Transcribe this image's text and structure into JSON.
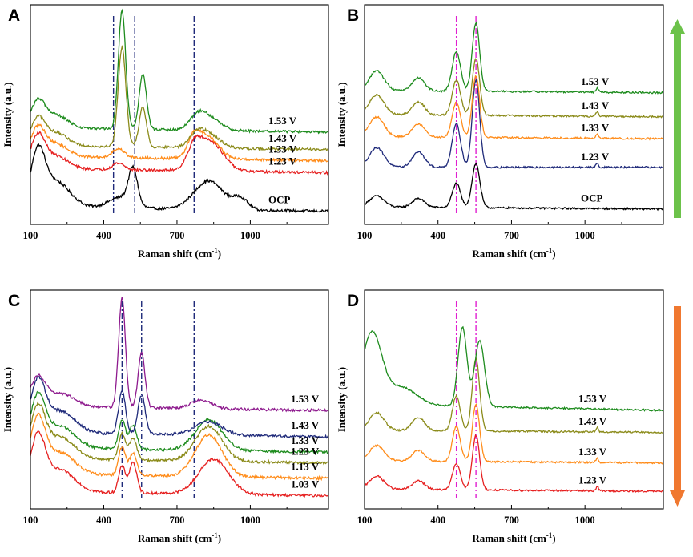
{
  "figure": {
    "arrows": {
      "up_color": "#6cc24a",
      "down_color": "#f07830"
    }
  },
  "chart_data": [
    {
      "panel": "A",
      "type": "line",
      "xlabel": "Raman shift (cm",
      "xlabel_sup": "-1",
      "xlabel_close": ")",
      "ylabel": "Intensity (a.u.)",
      "xlim": [
        100,
        1320
      ],
      "xticks": [
        100,
        400,
        700,
        1000
      ],
      "ref_lines": {
        "color": "#1f2a7a",
        "x": [
          440,
          527,
          770
        ]
      },
      "grid": false,
      "series": [
        {
          "name": "OCP",
          "label": "OCP",
          "color": "#000000",
          "offset": 0.08,
          "peaks": [
            [
              130,
              0.22,
              28
            ],
            [
              200,
              0.12,
              60
            ],
            [
              520,
              0.16,
              18
            ],
            [
              470,
              0.05,
              50
            ],
            [
              830,
              0.13,
              60
            ],
            [
              960,
              0.05,
              30
            ]
          ],
          "slope": -0.02,
          "noise": 0.006
        },
        {
          "name": "1.23 V",
          "label": "1.23 V",
          "color": "#e62020",
          "offset": 0.255,
          "peaks": [
            [
              130,
              0.14,
              28
            ],
            [
              200,
              0.06,
              50
            ],
            [
              460,
              0.03,
              25
            ],
            [
              770,
              0.07,
              25
            ],
            [
              830,
              0.14,
              55
            ]
          ],
          "slope": -0.02,
          "noise": 0.006
        },
        {
          "name": "1.33 V",
          "label": "1.33 V",
          "color": "#ff8c1a",
          "offset": 0.31,
          "peaks": [
            [
              130,
              0.12,
              28
            ],
            [
              200,
              0.06,
              50
            ],
            [
              460,
              0.04,
              25
            ],
            [
              770,
              0.08,
              25
            ],
            [
              825,
              0.1,
              45
            ]
          ],
          "slope": -0.02,
          "noise": 0.006
        },
        {
          "name": "1.43 V",
          "label": "1.43 V",
          "color": "#8b8b1a",
          "offset": 0.36,
          "peaks": [
            [
              130,
              0.11,
              28
            ],
            [
              200,
              0.06,
              50
            ],
            [
              475,
              0.45,
              16
            ],
            [
              560,
              0.18,
              15
            ],
            [
              780,
              0.05,
              30
            ],
            [
              830,
              0.06,
              45
            ]
          ],
          "slope": -0.02,
          "noise": 0.006
        },
        {
          "name": "1.53 V",
          "label": "1.53 V",
          "color": "#1e8c1e",
          "offset": 0.44,
          "peaks": [
            [
              130,
              0.11,
              28
            ],
            [
              200,
              0.06,
              50
            ],
            [
              475,
              0.54,
              15
            ],
            [
              560,
              0.25,
              15
            ],
            [
              780,
              0.05,
              30
            ],
            [
              830,
              0.06,
              45
            ]
          ],
          "slope": -0.02,
          "noise": 0.006
        }
      ]
    },
    {
      "panel": "B",
      "type": "line",
      "xlabel": "Raman shift (cm",
      "xlabel_sup": "-1",
      "xlabel_close": ")",
      "ylabel": "Intensity (a.u.)",
      "xlim": [
        100,
        1320
      ],
      "xticks": [
        100,
        400,
        700,
        1000
      ],
      "ref_lines": {
        "color": "#e020d0",
        "x": [
          475,
          555
        ]
      },
      "grid": false,
      "series": [
        {
          "name": "OCP",
          "label": "OCP",
          "color": "#000000",
          "offset": 0.08,
          "peaks": [
            [
              150,
              0.05,
              30
            ],
            [
              320,
              0.04,
              25
            ],
            [
              475,
              0.11,
              17
            ],
            [
              555,
              0.2,
              16
            ]
          ],
          "slope": -0.01,
          "noise": 0.004
        },
        {
          "name": "1.23 V",
          "label": "1.23 V",
          "color": "#1f2a7a",
          "offset": 0.26,
          "peaks": [
            [
              150,
              0.09,
              30
            ],
            [
              320,
              0.07,
              25
            ],
            [
              475,
              0.2,
              17
            ],
            [
              555,
              0.4,
              15
            ],
            [
              1050,
              0.02,
              5
            ]
          ],
          "slope": 0.0,
          "noise": 0.004
        },
        {
          "name": "1.33 V",
          "label": "1.33 V",
          "color": "#ff8c1a",
          "offset": 0.4,
          "peaks": [
            [
              150,
              0.09,
              30
            ],
            [
              320,
              0.06,
              25
            ],
            [
              475,
              0.16,
              17
            ],
            [
              555,
              0.28,
              15
            ],
            [
              1050,
              0.02,
              5
            ]
          ],
          "slope": -0.01,
          "noise": 0.004
        },
        {
          "name": "1.43 V",
          "label": "1.43 V",
          "color": "#8b8b1a",
          "offset": 0.5,
          "peaks": [
            [
              150,
              0.09,
              30
            ],
            [
              320,
              0.06,
              25
            ],
            [
              475,
              0.16,
              17
            ],
            [
              555,
              0.26,
              15
            ],
            [
              1050,
              0.02,
              5
            ]
          ],
          "slope": -0.01,
          "noise": 0.004
        },
        {
          "name": "1.53 V",
          "label": "1.53 V",
          "color": "#1e8c1e",
          "offset": 0.61,
          "peaks": [
            [
              150,
              0.09,
              30
            ],
            [
              320,
              0.06,
              25
            ],
            [
              475,
              0.18,
              17
            ],
            [
              555,
              0.31,
              15
            ],
            [
              1050,
              0.02,
              5
            ]
          ],
          "slope": -0.01,
          "noise": 0.004
        }
      ]
    },
    {
      "panel": "C",
      "type": "line",
      "xlabel": "Raman shift (cm",
      "xlabel_sup": "-1",
      "xlabel_close": ")",
      "ylabel": "Intensity (a.u.)",
      "xlim": [
        100,
        1320
      ],
      "xticks": [
        100,
        400,
        700,
        1000
      ],
      "ref_lines": {
        "color": "#1f2a7a",
        "x": [
          475,
          555,
          770
        ]
      },
      "grid": false,
      "series": [
        {
          "name": "1.03 V",
          "label": "1.03 V",
          "color": "#e62020",
          "offset": 0.08,
          "peaks": [
            [
              130,
              0.24,
              30
            ],
            [
              220,
              0.1,
              60
            ],
            [
              475,
              0.12,
              14
            ],
            [
              520,
              0.14,
              15
            ],
            [
              850,
              0.16,
              60
            ]
          ],
          "slope": -0.02,
          "noise": 0.006
        },
        {
          "name": "1.13 V",
          "label": "1.13 V",
          "color": "#ff8c1a",
          "offset": 0.16,
          "peaks": [
            [
              130,
              0.24,
              30
            ],
            [
              220,
              0.1,
              60
            ],
            [
              475,
              0.13,
              14
            ],
            [
              520,
              0.1,
              15
            ],
            [
              830,
              0.19,
              55
            ]
          ],
          "slope": -0.02,
          "noise": 0.006
        },
        {
          "name": "1.23 V",
          "label": "1.23 V",
          "color": "#8b8b1a",
          "offset": 0.23,
          "peaks": [
            [
              130,
              0.22,
              30
            ],
            [
              220,
              0.1,
              60
            ],
            [
              475,
              0.12,
              14
            ],
            [
              520,
              0.1,
              15
            ],
            [
              830,
              0.16,
              55
            ]
          ],
          "slope": -0.02,
          "noise": 0.006
        },
        {
          "name": "1.33 V",
          "label": "1.33 V",
          "color": "#1e8c1e",
          "offset": 0.28,
          "peaks": [
            [
              130,
              0.22,
              30
            ],
            [
              220,
              0.1,
              60
            ],
            [
              475,
              0.13,
              14
            ],
            [
              520,
              0.11,
              15
            ],
            [
              830,
              0.14,
              55
            ]
          ],
          "slope": -0.02,
          "noise": 0.006
        },
        {
          "name": "1.43 V",
          "label": "1.43 V",
          "color": "#1f2a7a",
          "offset": 0.35,
          "peaks": [
            [
              130,
              0.22,
              30
            ],
            [
              220,
              0.1,
              60
            ],
            [
              475,
              0.2,
              14
            ],
            [
              555,
              0.18,
              15
            ],
            [
              830,
              0.06,
              55
            ]
          ],
          "slope": -0.02,
          "noise": 0.006
        },
        {
          "name": "1.53 V",
          "label": "1.53 V",
          "color": "#8e1a8e",
          "offset": 0.47,
          "peaks": [
            [
              130,
              0.12,
              30
            ],
            [
              220,
              0.06,
              60
            ],
            [
              475,
              0.5,
              14
            ],
            [
              555,
              0.25,
              14
            ],
            [
              800,
              0.04,
              40
            ]
          ],
          "slope": -0.02,
          "noise": 0.006
        }
      ]
    },
    {
      "panel": "D",
      "type": "line",
      "xlabel": "Raman shift (cm",
      "xlabel_sup": "-1",
      "xlabel_close": ")",
      "ylabel": "Intensity (a.u.)",
      "xlim": [
        100,
        1320
      ],
      "xticks": [
        100,
        400,
        700,
        1000
      ],
      "ref_lines": {
        "color": "#e020d0",
        "x": [
          475,
          555
        ]
      },
      "grid": false,
      "series": [
        {
          "name": "1.23 V",
          "label": "1.23 V",
          "color": "#e62020",
          "offset": 0.09,
          "peaks": [
            [
              150,
              0.06,
              30
            ],
            [
              320,
              0.04,
              25
            ],
            [
              475,
              0.12,
              16
            ],
            [
              555,
              0.25,
              15
            ],
            [
              1050,
              0.02,
              5
            ]
          ],
          "slope": -0.01,
          "noise": 0.004
        },
        {
          "name": "1.33 V",
          "label": "1.33 V",
          "color": "#ff8c1a",
          "offset": 0.22,
          "peaks": [
            [
              150,
              0.07,
              30
            ],
            [
              320,
              0.05,
              25
            ],
            [
              475,
              0.16,
              16
            ],
            [
              555,
              0.26,
              15
            ],
            [
              1050,
              0.02,
              5
            ]
          ],
          "slope": -0.01,
          "noise": 0.004
        },
        {
          "name": "1.43 V",
          "label": "1.43 V",
          "color": "#8b8b1a",
          "offset": 0.36,
          "peaks": [
            [
              150,
              0.08,
              30
            ],
            [
              320,
              0.06,
              25
            ],
            [
              475,
              0.16,
              16
            ],
            [
              555,
              0.33,
              15
            ],
            [
              1050,
              0.02,
              5
            ]
          ],
          "slope": -0.01,
          "noise": 0.004
        },
        {
          "name": "1.53 V",
          "label": "1.53 V",
          "color": "#1e8c1e",
          "offset": 0.48,
          "peaks": [
            [
              130,
              0.32,
              40
            ],
            [
              250,
              0.08,
              60
            ],
            [
              500,
              0.36,
              18
            ],
            [
              570,
              0.3,
              20
            ]
          ],
          "slope": -0.03,
          "noise": 0.004
        }
      ]
    }
  ]
}
